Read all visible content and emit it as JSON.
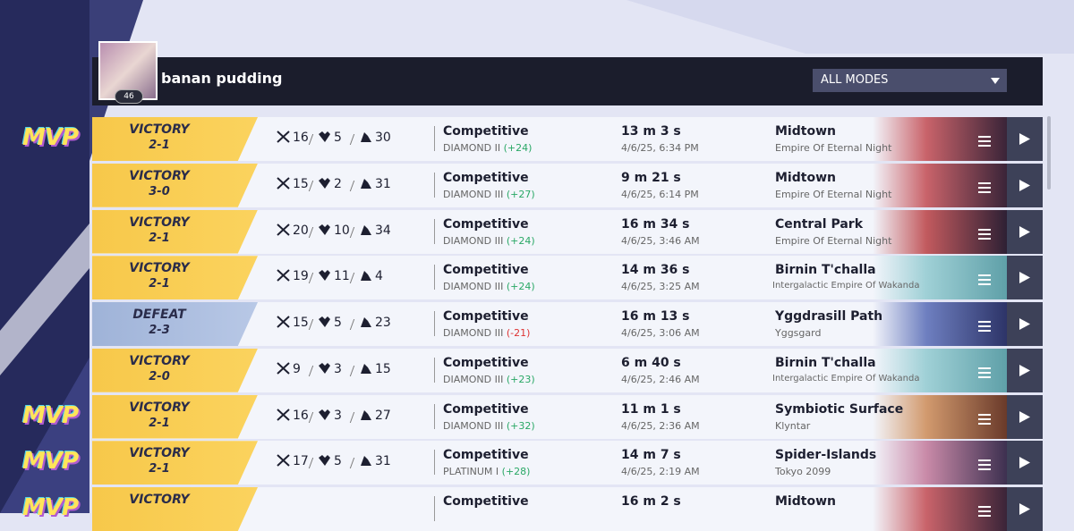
{
  "header": {
    "player_name": "banan pudding",
    "level": "46",
    "mode_filter": "ALL MODES"
  },
  "matches": [
    {
      "badge": "MVP",
      "result": "VICTORY",
      "score": "2-1",
      "kills": 16,
      "deaths": 5,
      "assists": 30,
      "mode": "Competitive",
      "rank": "DIAMOND II",
      "rank_change": "(+24)",
      "duration": "13 m 3 s",
      "datetime": "4/6/25, 6:34 PM",
      "map": "Midtown",
      "region": "Empire Of Eternal Night"
    },
    {
      "result": "VICTORY",
      "score": "3-0",
      "kills": 15,
      "deaths": 2,
      "assists": 31,
      "mode": "Competitive",
      "rank": "DIAMOND III",
      "rank_change": "(+27)",
      "duration": "9 m 21 s",
      "datetime": "4/6/25, 6:14 PM",
      "map": "Midtown",
      "region": "Empire Of Eternal Night"
    },
    {
      "result": "VICTORY",
      "score": "2-1",
      "kills": 20,
      "deaths": 10,
      "assists": 34,
      "mode": "Competitive",
      "rank": "DIAMOND III",
      "rank_change": "(+24)",
      "duration": "16 m 34 s",
      "datetime": "4/6/25, 3:46 AM",
      "map": "Central Park",
      "region": "Empire Of Eternal Night"
    },
    {
      "result": "VICTORY",
      "score": "2-1",
      "kills": 19,
      "deaths": 11,
      "assists": 4,
      "mode": "Competitive",
      "rank": "DIAMOND III",
      "rank_change": "(+24)",
      "duration": "14 m 36 s",
      "datetime": "4/6/25, 3:25 AM",
      "map": "Birnin T'challa",
      "region": "Intergalactic Empire Of Wakanda"
    },
    {
      "result": "DEFEAT",
      "score": "2-3",
      "kills": 15,
      "deaths": 5,
      "assists": 23,
      "mode": "Competitive",
      "rank": "DIAMOND III",
      "rank_change": "(-21)",
      "duration": "16 m 13 s",
      "datetime": "4/6/25, 3:06 AM",
      "map": "Yggdrasill Path",
      "region": "Yggsgard"
    },
    {
      "result": "VICTORY",
      "score": "2-0",
      "kills": 9,
      "deaths": 3,
      "assists": 15,
      "mode": "Competitive",
      "rank": "DIAMOND III",
      "rank_change": "(+23)",
      "duration": "6 m 40 s",
      "datetime": "4/6/25, 2:46 AM",
      "map": "Birnin T'challa",
      "region": "Intergalactic Empire Of Wakanda"
    },
    {
      "badge": "MVP",
      "result": "VICTORY",
      "score": "2-1",
      "kills": 16,
      "deaths": 3,
      "assists": 27,
      "mode": "Competitive",
      "rank": "DIAMOND III",
      "rank_change": "(+32)",
      "duration": "11 m 1 s",
      "datetime": "4/6/25, 2:36 AM",
      "map": "Symbiotic Surface",
      "region": "Klyntar"
    },
    {
      "badge": "MVP",
      "result": "VICTORY",
      "score": "2-1",
      "kills": 17,
      "deaths": 5,
      "assists": 31,
      "mode": "Competitive",
      "rank": "PLATINUM I",
      "rank_change": "(+28)",
      "duration": "14 m 7 s",
      "datetime": "4/6/25, 2:19 AM",
      "map": "Spider-Islands",
      "region": "Tokyo 2099"
    },
    {
      "badge": "MVP",
      "result": "VICTORY",
      "mode": "Competitive",
      "duration": "16 m 2 s",
      "map": "Midtown"
    }
  ]
}
